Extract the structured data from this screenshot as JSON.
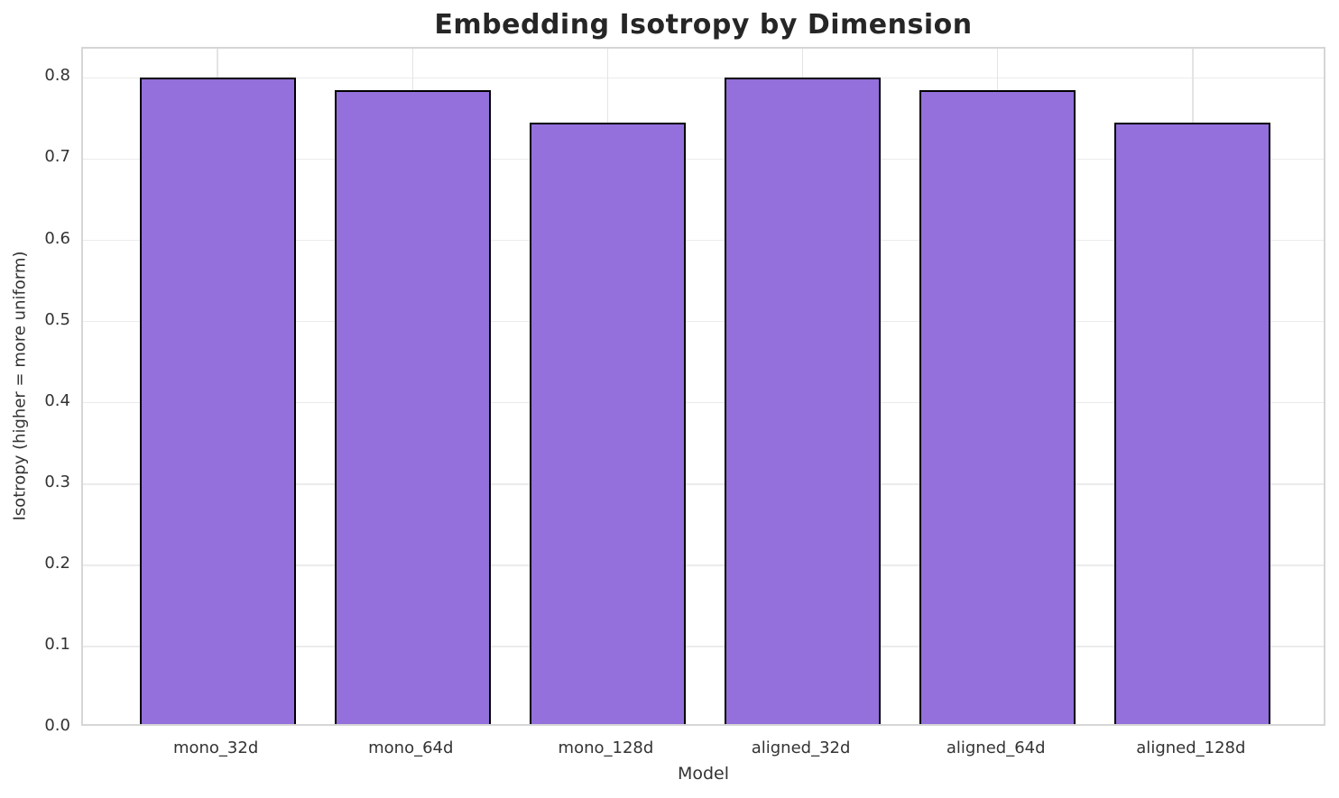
{
  "chart_data": {
    "type": "bar",
    "title": "Embedding Isotropy by Dimension",
    "xlabel": "Model",
    "ylabel": "Isotropy (higher = more uniform)",
    "categories": [
      "mono_32d",
      "mono_64d",
      "mono_128d",
      "aligned_32d",
      "aligned_64d",
      "aligned_128d"
    ],
    "values": [
      0.796,
      0.781,
      0.741,
      0.796,
      0.781,
      0.741
    ],
    "ytick_labels": [
      "0.0",
      "0.1",
      "0.2",
      "0.3",
      "0.4",
      "0.5",
      "0.6",
      "0.7",
      "0.8"
    ],
    "yticks": [
      0.0,
      0.1,
      0.2,
      0.3,
      0.4,
      0.5,
      0.6,
      0.7,
      0.8
    ],
    "ylim": [
      0,
      0.836
    ],
    "bar_width_fraction": 0.8,
    "grid": true,
    "legend_position": "none",
    "colors": {
      "bar_fill": "#9370DB",
      "bar_edge": "#000000",
      "grid_line": "#ebebeb",
      "spine": "#d6d6d6",
      "title_text": "#262626",
      "tick_text": "#333333",
      "background": "#ffffff"
    }
  }
}
